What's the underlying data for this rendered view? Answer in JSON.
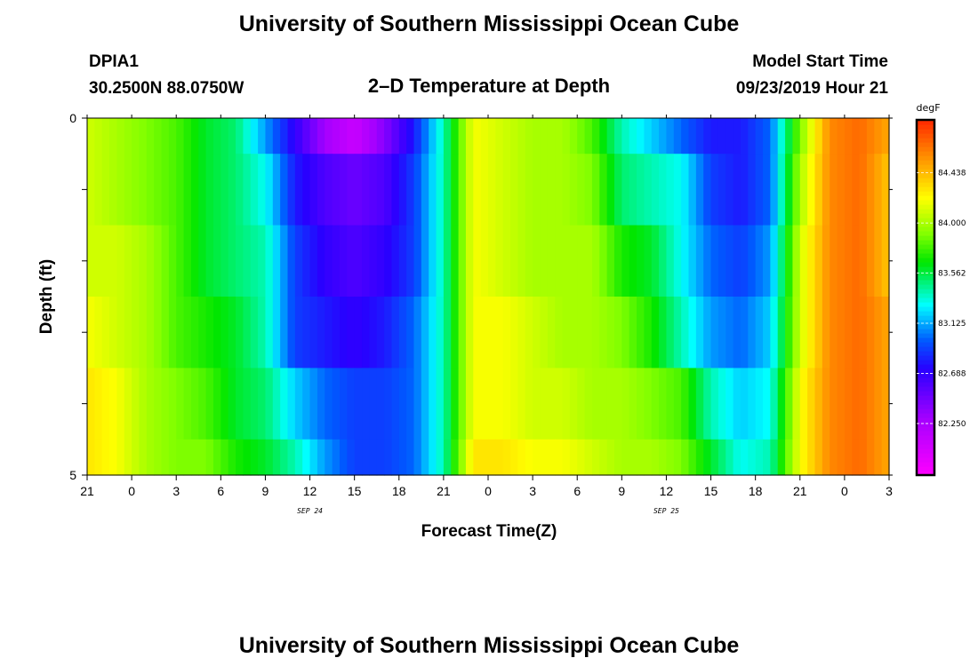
{
  "header": {
    "title": "University of Southern Mississippi Ocean Cube",
    "station": "DPIA1",
    "coords": "30.2500N 88.0750W",
    "subtitle": "2–D Temperature at Depth",
    "model_label": "Model Start Time",
    "model_time": "09/23/2019 Hour 21"
  },
  "footer": {
    "title": "University of Southern Mississippi Ocean Cube"
  },
  "chart_data": {
    "type": "heatmap",
    "xlabel": "Forecast Time(Z)",
    "ylabel": "Depth (ft)",
    "x_tick_labels": [
      "21",
      "0",
      "3",
      "6",
      "9",
      "12",
      "15",
      "18",
      "21",
      "0",
      "3",
      "6",
      "9",
      "12",
      "15",
      "18",
      "21",
      "0",
      "3"
    ],
    "date_labels": [
      {
        "label": "SEP 24",
        "at_tick": 5
      },
      {
        "label": "SEP 25",
        "at_tick": 13
      }
    ],
    "y_tick_labels": [
      "0",
      "5"
    ],
    "ylim": [
      0,
      5
    ],
    "colorbar": {
      "unit": "degF",
      "min": 81.8,
      "max": 84.9,
      "ticks": [
        "84.438",
        "84.000",
        "83.562",
        "83.125",
        "82.688",
        "82.250"
      ],
      "tick_values": [
        84.438,
        84.0,
        83.562,
        83.125,
        82.688,
        82.25
      ]
    },
    "x_hours": [
      0,
      2,
      4,
      6,
      8,
      10,
      12,
      14,
      16,
      18,
      20,
      22,
      24,
      26,
      28,
      30,
      32,
      34,
      36,
      38,
      40,
      42,
      44,
      46,
      48,
      50,
      52,
      54
    ],
    "depth_rows": [
      {
        "y0": 0.0,
        "y1": 0.5,
        "values": [
          84.1,
          84.0,
          83.9,
          83.8,
          83.6,
          83.5,
          83.1,
          82.7,
          82.3,
          82.1,
          82.4,
          82.8,
          83.4,
          84.2,
          84.1,
          84.0,
          84.0,
          83.8,
          83.4,
          83.2,
          83.0,
          82.8,
          82.8,
          83.0,
          83.9,
          84.6,
          84.7,
          84.5
        ]
      },
      {
        "y0": 0.5,
        "y1": 1.5,
        "values": [
          84.1,
          84.0,
          83.9,
          83.8,
          83.6,
          83.5,
          83.3,
          82.8,
          82.6,
          82.5,
          82.6,
          82.9,
          83.4,
          84.2,
          84.1,
          84.0,
          84.0,
          83.9,
          83.5,
          83.4,
          83.3,
          82.9,
          82.8,
          83.0,
          84.0,
          84.6,
          84.7,
          84.4
        ]
      },
      {
        "y0": 1.5,
        "y1": 2.5,
        "values": [
          84.1,
          84.1,
          84.0,
          83.8,
          83.6,
          83.5,
          83.4,
          82.9,
          82.7,
          82.6,
          82.7,
          82.9,
          83.4,
          84.2,
          84.1,
          84.0,
          84.0,
          84.0,
          83.7,
          83.6,
          83.3,
          83.0,
          82.9,
          83.1,
          84.1,
          84.6,
          84.7,
          84.4
        ]
      },
      {
        "y0": 2.5,
        "y1": 3.5,
        "values": [
          84.2,
          84.1,
          84.0,
          83.8,
          83.7,
          83.6,
          83.4,
          82.9,
          82.8,
          82.7,
          82.8,
          83.0,
          83.4,
          84.2,
          84.2,
          84.1,
          84.0,
          84.0,
          83.9,
          83.7,
          83.4,
          83.1,
          83.0,
          83.2,
          84.1,
          84.6,
          84.7,
          84.5
        ]
      },
      {
        "y0": 3.5,
        "y1": 4.5,
        "values": [
          84.3,
          84.2,
          84.0,
          83.9,
          83.8,
          83.6,
          83.5,
          83.2,
          83.0,
          82.9,
          82.9,
          83.0,
          83.4,
          84.2,
          84.2,
          84.1,
          84.1,
          84.0,
          84.0,
          83.9,
          83.8,
          83.4,
          83.2,
          83.3,
          84.2,
          84.6,
          84.7,
          84.5
        ]
      },
      {
        "y0": 4.5,
        "y1": 5.0,
        "values": [
          84.3,
          84.2,
          84.0,
          83.9,
          83.9,
          83.7,
          83.6,
          83.4,
          83.1,
          82.9,
          82.9,
          83.0,
          83.4,
          84.3,
          84.3,
          84.2,
          84.2,
          84.1,
          84.0,
          84.0,
          83.9,
          83.6,
          83.3,
          83.4,
          84.2,
          84.6,
          84.7,
          84.5
        ]
      }
    ]
  }
}
